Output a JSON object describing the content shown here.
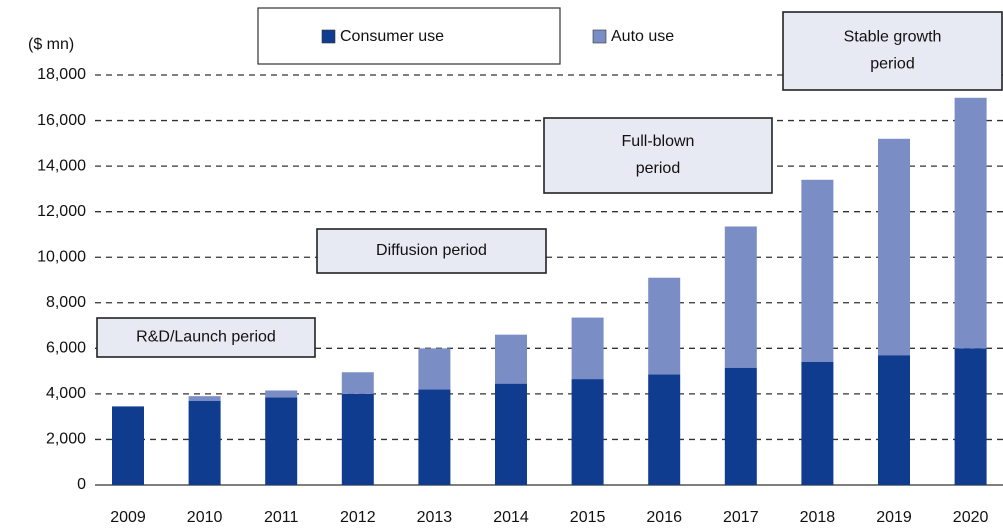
{
  "chart_data": {
    "type": "stacked_bar",
    "y_unit_label": "($ mn)",
    "categories": [
      "2009",
      "2010",
      "2011",
      "2012",
      "2013",
      "2014",
      "2015",
      "2016",
      "2017",
      "2018",
      "2019",
      "2020"
    ],
    "series": [
      {
        "name": "Consumer use",
        "color": "#0f3c8f",
        "values": [
          3450,
          3700,
          3850,
          4000,
          4200,
          4450,
          4650,
          4850,
          5150,
          5400,
          5700,
          6000
        ]
      },
      {
        "name": "Auto use",
        "color": "#7b8dc5",
        "values": [
          0,
          200,
          300,
          950,
          1800,
          2150,
          2700,
          4250,
          6200,
          8000,
          9500,
          11000
        ]
      }
    ],
    "ylim": [
      0,
      18000
    ],
    "yticks": [
      0,
      {
        "value": 2000,
        "label": "2,000"
      },
      {
        "value": 4000,
        "label": "4,000"
      },
      {
        "value": 6000,
        "label": "6,000"
      },
      {
        "value": 8000,
        "label": "8,000"
      },
      {
        "value": 10000,
        "label": "10,000"
      },
      {
        "value": 12000,
        "label": "12,000"
      },
      {
        "value": 14000,
        "label": "14,000"
      },
      {
        "value": 16000,
        "label": "16,000"
      },
      {
        "value": 18000,
        "label": "18,000"
      }
    ],
    "grid": true,
    "annotations": [
      {
        "lines": [
          "R&D/Launch period"
        ]
      },
      {
        "lines": [
          "Diffusion period"
        ]
      },
      {
        "lines": [
          "Full-blown",
          "period"
        ]
      },
      {
        "lines": [
          "Stable growth",
          "period"
        ]
      }
    ]
  }
}
